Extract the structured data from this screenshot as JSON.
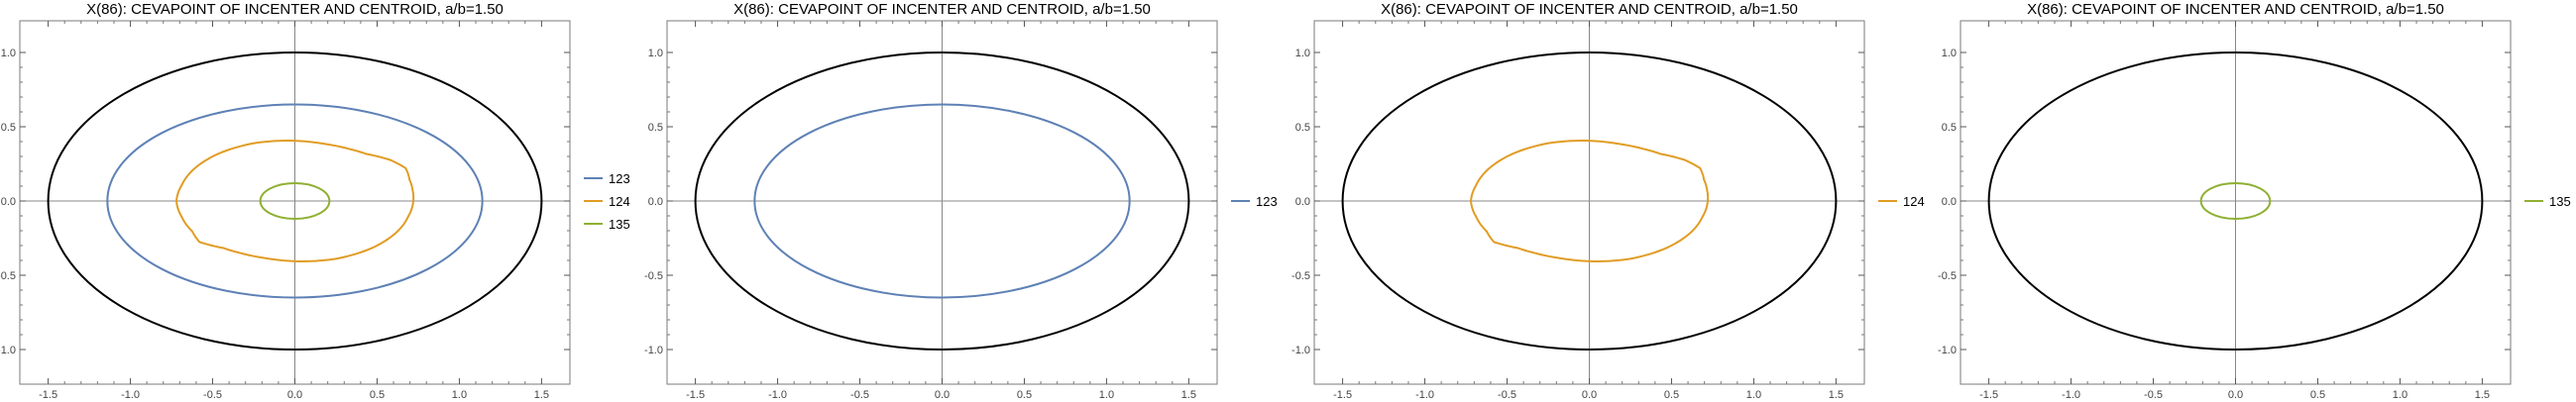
{
  "chart_data": [
    {
      "type": "line",
      "title": "X(86): CEVAPOINT OF INCENTER AND CENTROID, a/b=1.50",
      "xlim": [
        -1.6,
        1.6
      ],
      "ylim": [
        -1.1,
        1.1
      ],
      "x_ticks": [
        "-1.5",
        "-1.0",
        "-0.5",
        "0.0",
        "0.5",
        "1.0",
        "1.5"
      ],
      "y_ticks": [
        "-1.0",
        "-0.5",
        "0.0",
        "0.5",
        "1.0"
      ],
      "grid": false,
      "legend_position": "right",
      "series": [
        {
          "name": "",
          "color": "#000000",
          "shape": "ellipse",
          "center": [
            0,
            0
          ],
          "radii": [
            1.5,
            1.0
          ]
        },
        {
          "name": "123",
          "color": "#5e81b5",
          "shape": "ellipse",
          "center": [
            0,
            0
          ],
          "radii": [
            1.14,
            0.65
          ]
        },
        {
          "name": "124",
          "color": "#e19c24",
          "shape": "lobed",
          "x_extent": [
            -0.72,
            0.72
          ],
          "y_extent": [
            -0.41,
            0.41
          ]
        },
        {
          "name": "135",
          "color": "#8fb032",
          "shape": "ellipse",
          "center": [
            0,
            0
          ],
          "radii": [
            0.21,
            0.12
          ]
        }
      ]
    },
    {
      "type": "line",
      "title": "X(86): CEVAPOINT OF INCENTER AND CENTROID, a/b=1.50",
      "xlim": [
        -1.6,
        1.6
      ],
      "ylim": [
        -1.1,
        1.1
      ],
      "x_ticks": [
        "-1.5",
        "-1.0",
        "-0.5",
        "0.0",
        "0.5",
        "1.0",
        "1.5"
      ],
      "y_ticks": [
        "-1.0",
        "-0.5",
        "0.0",
        "0.5",
        "1.0"
      ],
      "grid": false,
      "legend_position": "right",
      "series": [
        {
          "name": "",
          "color": "#000000",
          "shape": "ellipse",
          "center": [
            0,
            0
          ],
          "radii": [
            1.5,
            1.0
          ]
        },
        {
          "name": "123",
          "color": "#5e81b5",
          "shape": "ellipse",
          "center": [
            0,
            0
          ],
          "radii": [
            1.14,
            0.65
          ]
        }
      ]
    },
    {
      "type": "line",
      "title": "X(86): CEVAPOINT OF INCENTER AND CENTROID, a/b=1.50",
      "xlim": [
        -1.6,
        1.6
      ],
      "ylim": [
        -1.1,
        1.1
      ],
      "x_ticks": [
        "-1.5",
        "-1.0",
        "-0.5",
        "0.0",
        "0.5",
        "1.0",
        "1.5"
      ],
      "y_ticks": [
        "-1.0",
        "-0.5",
        "0.0",
        "0.5",
        "1.0"
      ],
      "grid": false,
      "legend_position": "right",
      "series": [
        {
          "name": "",
          "color": "#000000",
          "shape": "ellipse",
          "center": [
            0,
            0
          ],
          "radii": [
            1.5,
            1.0
          ]
        },
        {
          "name": "124",
          "color": "#e19c24",
          "shape": "lobed",
          "x_extent": [
            -0.72,
            0.72
          ],
          "y_extent": [
            -0.41,
            0.41
          ]
        }
      ]
    },
    {
      "type": "line",
      "title": "X(86): CEVAPOINT OF INCENTER AND CENTROID, a/b=1.50",
      "xlim": [
        -1.6,
        1.6
      ],
      "ylim": [
        -1.1,
        1.1
      ],
      "x_ticks": [
        "-1.5",
        "-1.0",
        "-0.5",
        "0.0",
        "0.5",
        "1.0",
        "1.5"
      ],
      "y_ticks": [
        "-1.0",
        "-0.5",
        "0.0",
        "0.5",
        "1.0"
      ],
      "grid": false,
      "legend_position": "right",
      "series": [
        {
          "name": "",
          "color": "#000000",
          "shape": "ellipse",
          "center": [
            0,
            0
          ],
          "radii": [
            1.5,
            1.0
          ]
        },
        {
          "name": "135",
          "color": "#8fb032",
          "shape": "ellipse",
          "center": [
            0,
            0
          ],
          "radii": [
            0.21,
            0.12
          ]
        }
      ]
    }
  ]
}
